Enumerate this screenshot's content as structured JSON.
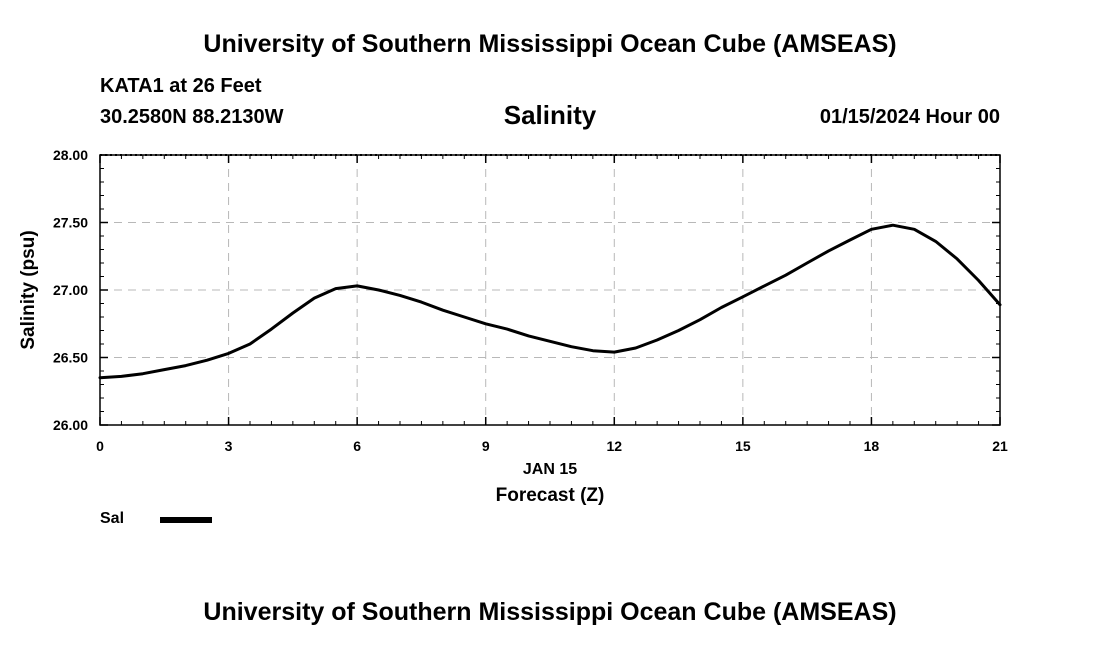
{
  "header": {
    "title": "University of Southern Mississippi Ocean Cube (AMSEAS)",
    "station": "KATA1 at 26 Feet",
    "coords": "30.2580N  88.2130W",
    "chart_title": "Salinity",
    "date": "01/15/2024 Hour 00"
  },
  "footer": {
    "title": "University of Southern Mississippi Ocean Cube (AMSEAS)"
  },
  "legend": {
    "label": "Sal"
  },
  "chart_data": {
    "type": "line",
    "title": "Salinity",
    "xlabel": "Forecast (Z)",
    "xlabel_date": "JAN 15",
    "ylabel": "Salinity (psu)",
    "xlim": [
      0,
      21
    ],
    "ylim": [
      26.0,
      28.0
    ],
    "xticks": [
      0,
      3,
      6,
      9,
      12,
      15,
      18,
      21
    ],
    "yticks": [
      26.0,
      26.5,
      27.0,
      27.5,
      28.0
    ],
    "ytick_labels": [
      "26.00",
      "26.50",
      "27.00",
      "27.50",
      "28.00"
    ],
    "grid": true,
    "series": [
      {
        "name": "Sal",
        "color": "#000000",
        "x": [
          0,
          0.5,
          1,
          1.5,
          2,
          2.5,
          3,
          3.5,
          4,
          4.5,
          5,
          5.5,
          6,
          6.5,
          7,
          7.5,
          8,
          8.5,
          9,
          9.5,
          10,
          10.5,
          11,
          11.5,
          12,
          12.5,
          13,
          13.5,
          14,
          14.5,
          15,
          15.5,
          16,
          16.5,
          17,
          17.5,
          18,
          18.5,
          19,
          19.5,
          20,
          20.5,
          21
        ],
        "values": [
          26.35,
          26.36,
          26.38,
          26.41,
          26.44,
          26.48,
          26.53,
          26.6,
          26.71,
          26.83,
          26.94,
          27.01,
          27.03,
          27.0,
          26.96,
          26.91,
          26.85,
          26.8,
          26.75,
          26.71,
          26.66,
          26.62,
          26.58,
          26.55,
          26.54,
          26.57,
          26.63,
          26.7,
          26.78,
          26.87,
          26.95,
          27.03,
          27.11,
          27.2,
          27.29,
          27.37,
          27.45,
          27.48,
          27.45,
          27.36,
          27.23,
          27.07,
          26.89
        ]
      }
    ]
  }
}
